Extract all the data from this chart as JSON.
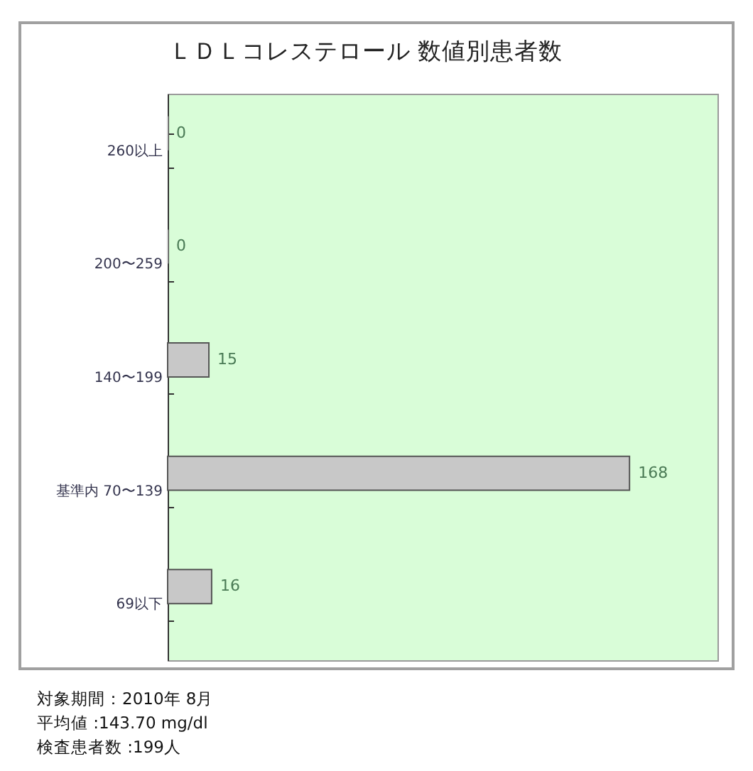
{
  "chart_data": {
    "type": "bar",
    "orientation": "horizontal",
    "title": "ＬＤＬコレステロール 数値別患者数",
    "categories": [
      "260以上",
      "200〜259",
      "140〜199",
      "基準内 70〜139",
      "69以下"
    ],
    "values": [
      0,
      0,
      15,
      168,
      16
    ],
    "color": "#c8c8c8",
    "data_labels": true,
    "xlim": [
      0,
      200
    ],
    "tick_labels": "y",
    "annotations": [
      "対象期間：2010年 8月",
      "平均値 :143.70 mg/dl",
      "検査患者数 :199人"
    ]
  }
}
